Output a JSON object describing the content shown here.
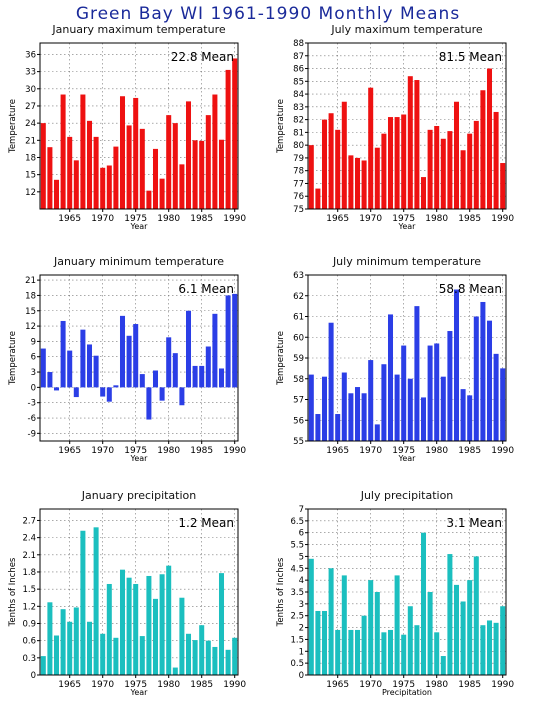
{
  "title": "Green Bay WI  1961-1990 Monthly Means",
  "chart_data": [
    {
      "type": "bar",
      "title": "January maximum temperature",
      "ylabel": "Temperature",
      "xlabel": "Year",
      "mean_label": "22.8  Mean",
      "color": "#ee1111",
      "ylim": [
        9,
        38
      ],
      "yticks": [
        12,
        15,
        18,
        21,
        24,
        27,
        30,
        33,
        36
      ],
      "x": [
        1961,
        1962,
        1963,
        1964,
        1965,
        1966,
        1967,
        1968,
        1969,
        1970,
        1971,
        1972,
        1973,
        1974,
        1975,
        1976,
        1977,
        1978,
        1979,
        1980,
        1981,
        1982,
        1983,
        1984,
        1985,
        1986,
        1987,
        1988,
        1989,
        1990
      ],
      "values": [
        24.0,
        19.8,
        14.1,
        29.0,
        21.6,
        17.5,
        29.0,
        24.4,
        21.6,
        16.2,
        16.6,
        19.9,
        28.7,
        23.6,
        28.4,
        23.0,
        12.2,
        19.5,
        14.3,
        25.4,
        24.0,
        16.8,
        27.8,
        21.0,
        20.9,
        25.4,
        29.0,
        21.1,
        33.3,
        35.3
      ],
      "xticks": [
        1965,
        1970,
        1975,
        1980,
        1985,
        1990
      ],
      "grid": true
    },
    {
      "type": "bar",
      "title": "July maximum temperature",
      "ylabel": "Temperature",
      "xlabel": "Year",
      "mean_label": "81.5  Mean",
      "color": "#ee1111",
      "ylim": [
        75,
        88
      ],
      "yticks": [
        75,
        76,
        77,
        78,
        79,
        80,
        81,
        82,
        83,
        84,
        85,
        86,
        87,
        88
      ],
      "x": [
        1961,
        1962,
        1963,
        1964,
        1965,
        1966,
        1967,
        1968,
        1969,
        1970,
        1971,
        1972,
        1973,
        1974,
        1975,
        1976,
        1977,
        1978,
        1979,
        1980,
        1981,
        1982,
        1983,
        1984,
        1985,
        1986,
        1987,
        1988,
        1989,
        1990
      ],
      "values": [
        80.0,
        76.6,
        82.0,
        82.5,
        81.2,
        83.4,
        79.2,
        79.0,
        78.8,
        84.5,
        79.8,
        80.9,
        82.2,
        82.2,
        82.4,
        85.4,
        85.1,
        77.5,
        81.2,
        81.5,
        80.5,
        81.1,
        83.4,
        79.6,
        80.9,
        81.9,
        84.3,
        86.0,
        82.6,
        78.6
      ],
      "xticks": [
        1965,
        1970,
        1975,
        1980,
        1985,
        1990
      ],
      "grid": true
    },
    {
      "type": "bar",
      "title": "January minimum temperature",
      "ylabel": "Temperature",
      "xlabel": "Year",
      "mean_label": "6.1  Mean",
      "color": "#2b3ee6",
      "ylim": [
        -10.5,
        22
      ],
      "yticks": [
        -9,
        -6,
        -3,
        0,
        3,
        6,
        9,
        12,
        15,
        18,
        21
      ],
      "x": [
        1961,
        1962,
        1963,
        1964,
        1965,
        1966,
        1967,
        1968,
        1969,
        1970,
        1971,
        1972,
        1973,
        1974,
        1975,
        1976,
        1977,
        1978,
        1979,
        1980,
        1981,
        1982,
        1983,
        1984,
        1985,
        1986,
        1987,
        1988,
        1989,
        1990
      ],
      "values": [
        7.6,
        3.0,
        -0.6,
        13.0,
        7.2,
        -1.9,
        11.3,
        8.4,
        6.2,
        -1.8,
        -2.8,
        0.4,
        14.0,
        10.1,
        12.4,
        2.6,
        -6.3,
        3.3,
        -2.6,
        9.8,
        6.7,
        -3.5,
        15.0,
        4.2,
        4.2,
        8.0,
        14.4,
        3.7,
        18.0,
        18.3
      ],
      "xticks": [
        1965,
        1970,
        1975,
        1980,
        1985,
        1990
      ],
      "grid": true
    },
    {
      "type": "bar",
      "title": "July minimum temperature",
      "ylabel": "Temperature",
      "xlabel": "Year",
      "mean_label": "58.8  Mean",
      "color": "#2b3ee6",
      "ylim": [
        55,
        63
      ],
      "yticks": [
        55,
        56,
        57,
        58,
        59,
        60,
        61,
        62,
        63
      ],
      "x": [
        1961,
        1962,
        1963,
        1964,
        1965,
        1966,
        1967,
        1968,
        1969,
        1970,
        1971,
        1972,
        1973,
        1974,
        1975,
        1976,
        1977,
        1978,
        1979,
        1980,
        1981,
        1982,
        1983,
        1984,
        1985,
        1986,
        1987,
        1988,
        1989,
        1990
      ],
      "values": [
        58.2,
        56.3,
        58.1,
        60.7,
        56.3,
        58.3,
        57.3,
        57.6,
        57.3,
        58.9,
        55.8,
        58.7,
        61.1,
        58.2,
        59.6,
        58.0,
        61.5,
        57.1,
        59.6,
        59.7,
        58.1,
        60.3,
        62.3,
        57.5,
        57.2,
        61.0,
        61.7,
        60.8,
        59.2,
        58.5
      ],
      "xticks": [
        1965,
        1970,
        1975,
        1980,
        1985,
        1990
      ],
      "grid": true
    },
    {
      "type": "bar",
      "title": "January precipitation",
      "ylabel": "Tenths of Inches",
      "xlabel": "Year",
      "mean_label": "1.2  Mean",
      "color": "#1bbfbf",
      "ylim": [
        0,
        2.9
      ],
      "yticks": [
        0,
        0.3,
        0.6,
        0.9,
        1.2,
        1.5,
        1.8,
        2.1,
        2.4,
        2.7
      ],
      "ytick_labels": [
        "0",
        "0.3",
        "0.6",
        "0.9",
        "1.2",
        "1.5",
        "1.8",
        "2.1",
        "2.4",
        "2.7"
      ],
      "x": [
        1961,
        1962,
        1963,
        1964,
        1965,
        1966,
        1967,
        1968,
        1969,
        1970,
        1971,
        1972,
        1973,
        1974,
        1975,
        1976,
        1977,
        1978,
        1979,
        1980,
        1981,
        1982,
        1983,
        1984,
        1985,
        1986,
        1987,
        1988,
        1989,
        1990
      ],
      "values": [
        0.33,
        1.27,
        0.69,
        1.15,
        0.93,
        1.18,
        2.52,
        0.93,
        2.58,
        0.72,
        1.59,
        0.65,
        1.84,
        1.7,
        1.59,
        0.68,
        1.73,
        1.33,
        1.76,
        1.91,
        0.13,
        1.35,
        0.72,
        0.61,
        0.87,
        0.6,
        0.49,
        1.78,
        0.44,
        0.65
      ],
      "xticks": [
        1965,
        1970,
        1975,
        1980,
        1985,
        1990
      ],
      "grid": true
    },
    {
      "type": "bar",
      "title": "July precipitation",
      "ylabel": "Tenths of Inches",
      "xlabel": "Precipitation",
      "mean_label": "3.1  Mean",
      "color": "#1bbfbf",
      "ylim": [
        0,
        7
      ],
      "yticks": [
        0,
        0.5,
        1,
        1.5,
        2,
        2.5,
        3,
        3.5,
        4,
        4.5,
        5,
        5.5,
        6,
        6.5,
        7
      ],
      "ytick_labels": [
        "0",
        "0.5",
        "1",
        "1.5",
        "2",
        "2.5",
        "3",
        "3.5",
        "4",
        "4.5",
        "5",
        "5.5",
        "6",
        "6.5",
        "7"
      ],
      "x": [
        1961,
        1962,
        1963,
        1964,
        1965,
        1966,
        1967,
        1968,
        1969,
        1970,
        1971,
        1972,
        1973,
        1974,
        1975,
        1976,
        1977,
        1978,
        1979,
        1980,
        1981,
        1982,
        1983,
        1984,
        1985,
        1986,
        1987,
        1988,
        1989,
        1990
      ],
      "values": [
        4.9,
        2.7,
        2.7,
        4.5,
        1.9,
        4.2,
        1.9,
        1.9,
        2.5,
        4.0,
        3.5,
        1.8,
        1.9,
        4.2,
        1.7,
        2.9,
        2.1,
        6.0,
        3.5,
        1.8,
        0.8,
        5.1,
        3.8,
        3.1,
        4.0,
        5.0,
        2.1,
        2.3,
        2.2,
        2.9
      ],
      "xticks": [
        1965,
        1970,
        1975,
        1980,
        1985,
        1990
      ],
      "grid": true
    }
  ]
}
